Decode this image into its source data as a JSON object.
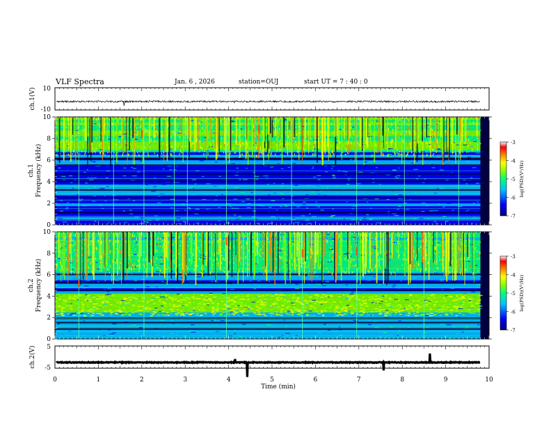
{
  "header": {
    "title": "VLF Spectra",
    "date": "Jan. 6 , 2026",
    "station": "station=OUJ",
    "start": "start UT =   7 : 40 : 0"
  },
  "chart_data": [
    {
      "type": "line",
      "panel": "waveform-ch1",
      "ylabel": "ch.1(V)",
      "ylim": [
        -10,
        10
      ],
      "yticks": [
        "10",
        "-10"
      ],
      "xlim": [
        0,
        10
      ],
      "baseline": 0,
      "color": "#000000"
    },
    {
      "type": "heatmap",
      "panel": "spectrogram-ch1",
      "ylabel_top": "ch.1",
      "ylabel": "Frequency (kHz)",
      "ylim": [
        0,
        10
      ],
      "yticks": [
        "0",
        "2",
        "4",
        "6",
        "8",
        "10"
      ],
      "xlim": [
        0,
        10
      ],
      "data_extent_min": 9.8,
      "colorbar": {
        "label": "log(PSD)(V²/Hz)",
        "range": [
          -7,
          -3
        ],
        "ticks": [
          "-3",
          "-4",
          "-5",
          "-6",
          "-7"
        ],
        "colors": [
          "#000080",
          "#0000ff",
          "#00c0ff",
          "#00ff80",
          "#80ff00",
          "#ffff00",
          "#ff8000",
          "#ff0000",
          "#ffffff"
        ]
      }
    },
    {
      "type": "heatmap",
      "panel": "spectrogram-ch2",
      "ylabel_top": "ch.2",
      "ylabel": "Frequency (kHz)",
      "ylim": [
        0,
        10
      ],
      "yticks": [
        "0",
        "2",
        "4",
        "6",
        "8",
        "10"
      ],
      "xlim": [
        0,
        10
      ],
      "data_extent_min": 9.8,
      "colorbar": {
        "label": "log(PSD)(V²/Hz)",
        "range": [
          -7,
          -3
        ],
        "ticks": [
          "-3",
          "-4",
          "-5",
          "-6",
          "-7"
        ],
        "colors": [
          "#000080",
          "#0000ff",
          "#00c0ff",
          "#00ff80",
          "#80ff00",
          "#ffff00",
          "#ff8000",
          "#ff0000",
          "#ffffff"
        ]
      }
    },
    {
      "type": "line",
      "panel": "waveform-ch2",
      "ylabel": "ch.2(V)",
      "ylim": [
        -5,
        5
      ],
      "yticks": [
        "5",
        "-5"
      ],
      "xlim": [
        0,
        10
      ],
      "baseline": 0,
      "color": "#000000"
    }
  ],
  "xaxis": {
    "label": "Time (min)",
    "ticks": [
      "0",
      "1",
      "2",
      "3",
      "4",
      "5",
      "6",
      "7",
      "8",
      "9",
      "10"
    ]
  }
}
